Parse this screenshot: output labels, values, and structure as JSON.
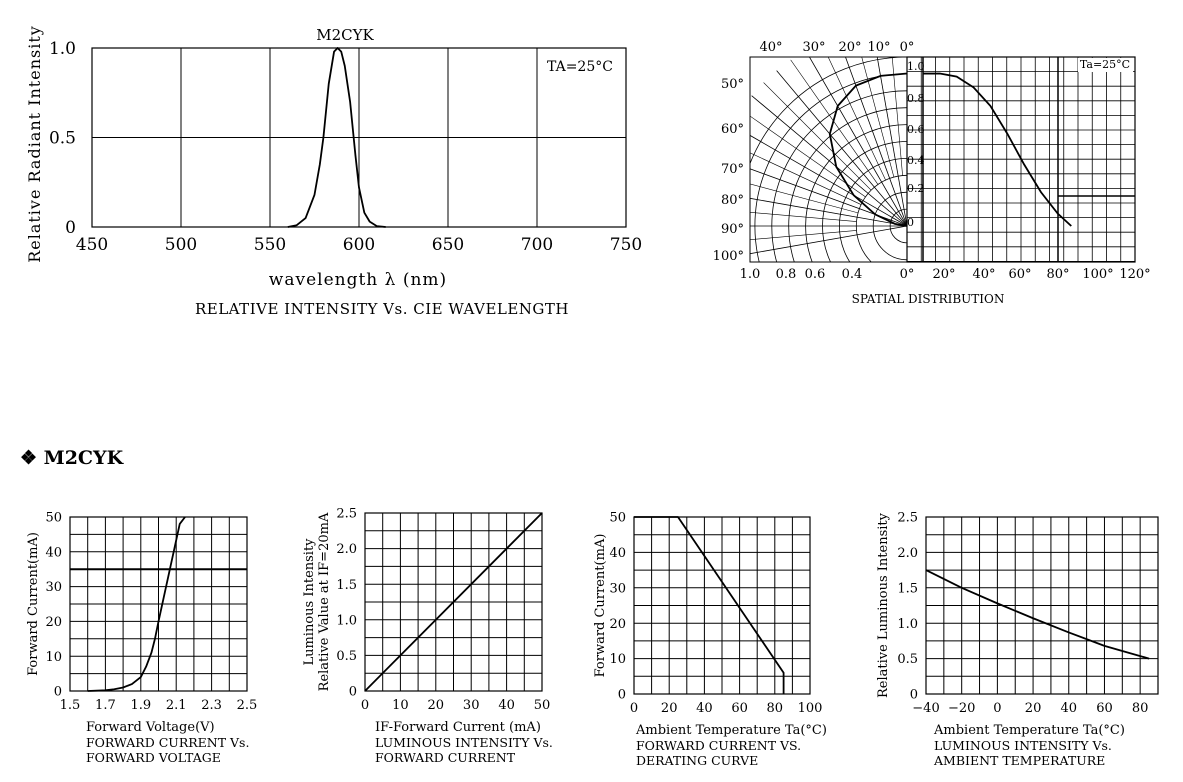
{
  "section_heading": {
    "symbol": "❖",
    "text": "M2CYK"
  },
  "chart_data": [
    {
      "id": "spectrum",
      "type": "line",
      "title": "M2CYK",
      "xlabel": "wavelength λ (nm)",
      "ylabel": "Relative Radiant Intensity",
      "caption": "RELATIVE INTENSITY Vs. CIE WAVELENGTH",
      "annotation": "TA=25°C",
      "xlim": [
        450,
        750
      ],
      "ylim": [
        0,
        1.0
      ],
      "x_ticks": [
        "450",
        "500",
        "550",
        "600",
        "650",
        "700",
        "750"
      ],
      "y_ticks": [
        "0",
        "0.5",
        "1.0"
      ],
      "grid": true,
      "series": [
        {
          "x": [
            560,
            565,
            570,
            575,
            578,
            580,
            583,
            586,
            588,
            590,
            592,
            595,
            598,
            600,
            603,
            606,
            610,
            615
          ],
          "y": [
            0,
            0.01,
            0.05,
            0.18,
            0.35,
            0.5,
            0.8,
            0.98,
            1.0,
            0.98,
            0.9,
            0.7,
            0.4,
            0.22,
            0.08,
            0.03,
            0.005,
            0
          ]
        }
      ]
    },
    {
      "id": "spatial",
      "type": "line",
      "caption": "SPATIAL DISTRIBUTION",
      "annotation": "Ta=25°C",
      "polar_angle_labels": [
        "40°",
        "30°",
        "20°",
        "10°",
        "0°",
        "50°",
        "60°",
        "70°",
        "80°",
        "90°",
        "100°"
      ],
      "polar_radius_labels": [
        "1.0",
        "0.8",
        "0.6",
        "0.4",
        "0°"
      ],
      "rect_y_ticks": [
        "1.0",
        "0.8",
        "0.6",
        "0.4",
        "0.2",
        "0"
      ],
      "rect_x_ticks": [
        "20°",
        "40°",
        "60°",
        "80°",
        "100°",
        "120°"
      ],
      "rect_curve": {
        "x": [
          0,
          10,
          20,
          30,
          40,
          50,
          60,
          70,
          80,
          88
        ],
        "y": [
          0.99,
          0.99,
          0.97,
          0.9,
          0.78,
          0.6,
          0.4,
          0.22,
          0.08,
          0
        ]
      },
      "polar_curve": {
        "angle_deg": [
          0,
          10,
          20,
          30,
          40,
          50,
          60,
          70,
          80,
          90
        ],
        "r": [
          0.99,
          0.99,
          0.97,
          0.9,
          0.78,
          0.6,
          0.4,
          0.22,
          0.08,
          0
        ]
      }
    },
    {
      "id": "iv",
      "type": "line",
      "xlabel": "Forward Voltage(V)",
      "ylabel": "Forward Current(mA)",
      "caption": [
        "FORWARD CURRENT Vs.",
        "FORWARD VOLTAGE"
      ],
      "xlim": [
        1.5,
        2.5
      ],
      "ylim": [
        0,
        50
      ],
      "x_ticks": [
        "1.5",
        "1.7",
        "1.9",
        "2.1",
        "2.3",
        "2.5"
      ],
      "y_ticks": [
        "0",
        "10",
        "20",
        "30",
        "40",
        "50"
      ],
      "hline": 35,
      "series": [
        {
          "x": [
            1.6,
            1.7,
            1.75,
            1.8,
            1.85,
            1.9,
            1.93,
            1.96,
            1.98,
            2.0,
            2.03,
            2.06,
            2.09,
            2.12,
            2.15
          ],
          "y": [
            0,
            0.2,
            0.5,
            1,
            2,
            4,
            7,
            11,
            15,
            20,
            27,
            34,
            41,
            48,
            55
          ]
        }
      ]
    },
    {
      "id": "lum_current",
      "type": "line",
      "xlabel": "IF-Forward Current (mA)",
      "ylabel": [
        "Luminous Intensity",
        "Relative Value at IF=20mA"
      ],
      "caption": [
        "LUMINOUS INTENSITY Vs.",
        "FORWARD CURRENT"
      ],
      "xlim": [
        0,
        50
      ],
      "ylim": [
        0,
        2.5
      ],
      "x_ticks": [
        "0",
        "10",
        "20",
        "30",
        "40",
        "50"
      ],
      "y_ticks": [
        "0",
        "0.5",
        "1.0",
        "1.5",
        "2.0",
        "2.5"
      ],
      "series": [
        {
          "x": [
            0,
            50
          ],
          "y": [
            0,
            2.5
          ]
        }
      ]
    },
    {
      "id": "derating",
      "type": "line",
      "xlabel": "Ambient Temperature Ta(°C)",
      "ylabel": "Forward Current(mA)",
      "caption": [
        "FORWARD CURRENT VS.",
        "DERATING CURVE"
      ],
      "xlim": [
        0,
        100
      ],
      "ylim": [
        0,
        50
      ],
      "x_ticks": [
        "0",
        "20",
        "40",
        "60",
        "80",
        "100"
      ],
      "y_ticks": [
        "0",
        "10",
        "20",
        "30",
        "40",
        "50"
      ],
      "series": [
        {
          "x": [
            0,
            25,
            85,
            85
          ],
          "y": [
            50,
            50,
            6,
            0
          ]
        }
      ]
    },
    {
      "id": "lum_temp",
      "type": "line",
      "xlabel": "Ambient Temperature Ta(°C)",
      "ylabel": "Relative Luminous Intensity",
      "caption": [
        "LUMINOUS INTENSITY Vs.",
        "AMBIENT TEMPERATURE"
      ],
      "xlim": [
        -40,
        90
      ],
      "ylim": [
        0,
        2.5
      ],
      "x_ticks": [
        "-40",
        "-20",
        "0",
        "20",
        "40",
        "60",
        "80"
      ],
      "y_ticks": [
        "0",
        "0.5",
        "1.0",
        "1.5",
        "2.0",
        "2.5"
      ],
      "series": [
        {
          "x": [
            -40,
            -20,
            0,
            20,
            40,
            60,
            85
          ],
          "y": [
            1.75,
            1.5,
            1.28,
            1.07,
            0.87,
            0.68,
            0.5
          ]
        }
      ]
    }
  ]
}
